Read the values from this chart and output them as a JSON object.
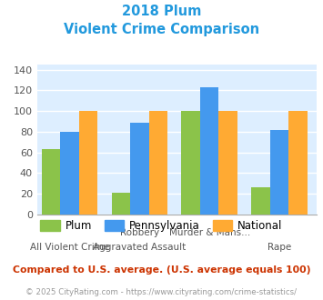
{
  "title_line1": "2018 Plum",
  "title_line2": "Violent Crime Comparison",
  "cat_labels_row1": [
    "",
    "Robbery",
    "Murder & Mans...",
    ""
  ],
  "cat_labels_row2": [
    "All Violent Crime",
    "Aggravated Assault",
    "",
    "Rape"
  ],
  "plum_values": [
    63,
    21,
    100,
    26
  ],
  "pennsylvania_values": [
    80,
    89,
    123,
    82
  ],
  "national_values": [
    100,
    100,
    100,
    100
  ],
  "plum_color": "#8bc34a",
  "pennsylvania_color": "#4499ee",
  "national_color": "#ffaa33",
  "ylim": [
    0,
    145
  ],
  "yticks": [
    0,
    20,
    40,
    60,
    80,
    100,
    120,
    140
  ],
  "plot_bg_color": "#ddeeff",
  "grid_color": "#ffffff",
  "title_color": "#2299dd",
  "footnote1": "Compared to U.S. average. (U.S. average equals 100)",
  "footnote2": "© 2025 CityRating.com - https://www.cityrating.com/crime-statistics/",
  "footnote1_color": "#cc3300",
  "footnote2_color": "#999999",
  "bar_width": 0.2,
  "group_positions": [
    0.35,
    1.1,
    1.85,
    2.6
  ]
}
